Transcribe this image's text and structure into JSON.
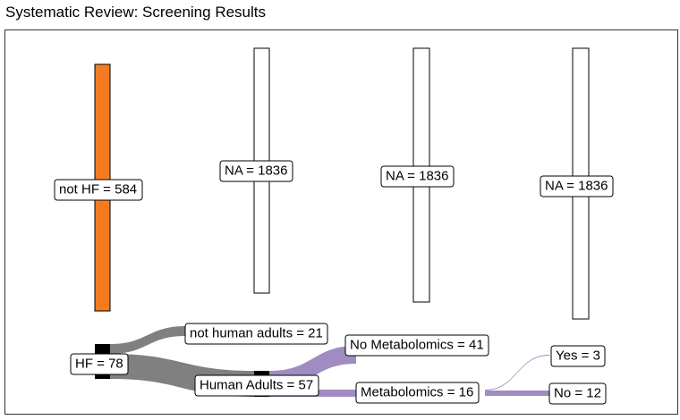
{
  "title": "Systematic Review: Screening Results",
  "colors": {
    "excluded": "#f47b20",
    "gray_flow": "#808080",
    "purple_flow": "#a08cc0",
    "node": "#000000"
  },
  "labels": {
    "not_hf": "not HF = 584",
    "na_1": "NA = 1836",
    "na_2": "NA = 1836",
    "na_3": "NA = 1836",
    "hf": "HF = 78",
    "not_human_adults": "not human adults = 21",
    "human_adults": "Human Adults = 57",
    "no_metabolomics": "No Metabolomics = 41",
    "metabolomics": "Metabolomics = 16",
    "yes": "Yes = 3",
    "no": "No = 12"
  },
  "chart_data": {
    "type": "sankey",
    "nodes": [
      {
        "name": "not HF",
        "value": 584
      },
      {
        "name": "NA",
        "value": 1836
      },
      {
        "name": "NA",
        "value": 1836
      },
      {
        "name": "NA",
        "value": 1836
      },
      {
        "name": "HF",
        "value": 78
      },
      {
        "name": "not human adults",
        "value": 21
      },
      {
        "name": "Human Adults",
        "value": 57
      },
      {
        "name": "No Metabolomics",
        "value": 41
      },
      {
        "name": "Metabolomics",
        "value": 16
      },
      {
        "name": "Yes",
        "value": 3
      },
      {
        "name": "No",
        "value": 12
      }
    ],
    "links": [
      {
        "source": "HF",
        "target": "not human adults",
        "value": 21
      },
      {
        "source": "HF",
        "target": "Human Adults",
        "value": 57
      },
      {
        "source": "Human Adults",
        "target": "No Metabolomics",
        "value": 41
      },
      {
        "source": "Human Adults",
        "target": "Metabolomics",
        "value": 16
      },
      {
        "source": "Metabolomics",
        "target": "Yes",
        "value": 3
      },
      {
        "source": "Metabolomics",
        "target": "No",
        "value": 12
      }
    ]
  }
}
